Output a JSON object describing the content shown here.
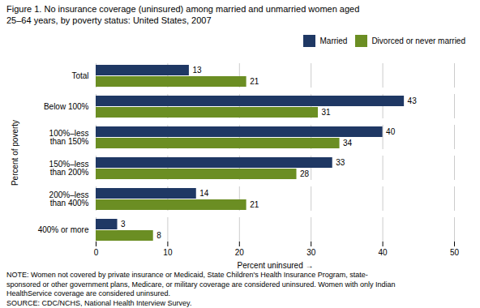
{
  "chart_data": {
    "type": "bar",
    "orientation": "horizontal",
    "title": "Figure 1. No insurance coverage (uninsured) among married and unmarried women aged\n25–64 years, by poverty status: United States, 2007",
    "categories": [
      "Total",
      "Below 100%",
      "100%–less\nthan 150%",
      "150%–less\nthan 200%",
      "200%–less\nthan 400%",
      "400% or more"
    ],
    "series": [
      {
        "name": "Married",
        "color": "#1F3864",
        "values": [
          13,
          43,
          40,
          33,
          14,
          3
        ]
      },
      {
        "name": "Divorced or never married",
        "color": "#6B8E23",
        "values": [
          21,
          31,
          34,
          28,
          21,
          8
        ]
      }
    ],
    "xlabel": "Percent uninsured",
    "ylabel": "Percent of poverty",
    "xlim": [
      0,
      50
    ],
    "xticks": [
      0,
      10,
      20,
      30,
      40,
      50
    ],
    "grid": true,
    "legend": "upper right",
    "data_labels": true,
    "annotations": [
      "NOTE: Women not covered by private insurance or Medicaid, State Children's Health Insurance Program, state-",
      "sponsored or other government plans, Medicare, or military coverage are considered uninsured. Women with only Indian",
      "HealthService coverage are considered uninsured.",
      "SOURCE: CDC/NCHS, National Health Interview Survey."
    ]
  }
}
